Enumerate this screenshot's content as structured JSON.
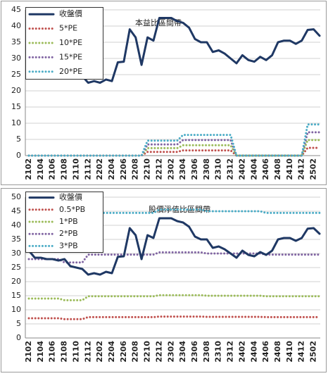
{
  "chart_data": [
    {
      "type": "line",
      "annotation": "本益比區間帶",
      "categories": [
        "2102",
        null,
        "2104",
        null,
        "2106",
        null,
        "2108",
        null,
        "2110",
        null,
        "2112",
        null,
        "2202",
        null,
        "2204",
        null,
        "2206",
        null,
        "2208",
        null,
        "2210",
        null,
        "2212",
        null,
        "2302",
        null,
        "2304",
        null,
        "2306",
        null,
        "2308",
        null,
        "2310",
        null,
        "2312",
        null,
        "2402",
        null,
        "2404",
        null,
        "2406",
        null,
        "2408",
        null,
        "2410",
        null,
        "2412",
        null,
        "2502",
        null
      ],
      "ylim": [
        0,
        45
      ],
      "yticks": [
        0,
        5,
        10,
        15,
        20,
        25,
        30,
        35,
        40,
        45
      ],
      "grid": true,
      "legend": "upper left",
      "series": [
        {
          "name": "收盤價",
          "color": "#1f3864",
          "values": [
            31,
            28.5,
            28.5,
            28,
            28,
            27.5,
            28,
            25.5,
            25,
            24.5,
            22.5,
            23,
            22.5,
            23.5,
            23,
            28.8,
            29,
            39,
            36.5,
            28,
            36.5,
            35.5,
            42.5,
            42.5,
            42.5,
            41.5,
            41,
            39.5,
            36,
            35,
            35,
            32,
            32.5,
            31.5,
            30,
            28.5,
            31,
            29.5,
            29,
            30.5,
            29.5,
            31,
            35,
            35.5,
            35.5,
            34.5,
            35.5,
            38.8,
            39,
            37
          ]
        },
        {
          "name": "5*PE",
          "color": "#c0504d",
          "values": [
            0,
            0,
            0,
            0,
            0,
            0,
            0,
            0,
            0,
            0,
            0,
            0,
            0,
            0,
            0,
            0,
            0,
            0,
            0,
            0,
            1.15,
            1.15,
            1.15,
            1.15,
            1.15,
            1.15,
            1.6,
            1.6,
            1.6,
            1.6,
            1.6,
            1.6,
            1.6,
            1.6,
            1.6,
            0,
            0,
            0,
            0,
            0,
            0,
            0,
            0,
            0,
            0,
            0,
            0,
            2.4,
            2.4,
            2.4
          ]
        },
        {
          "name": "10*PE",
          "color": "#9bbb59",
          "values": [
            0,
            0,
            0,
            0,
            0,
            0,
            0,
            0,
            0,
            0,
            0,
            0,
            0,
            0,
            0,
            0,
            0,
            0,
            0,
            0,
            2.3,
            2.3,
            2.3,
            2.3,
            2.3,
            2.3,
            3.2,
            3.2,
            3.2,
            3.2,
            3.2,
            3.2,
            3.2,
            3.2,
            3.2,
            0,
            0,
            0,
            0,
            0,
            0,
            0,
            0,
            0,
            0,
            0,
            0,
            4.8,
            4.8,
            4.8
          ]
        },
        {
          "name": "15*PE",
          "color": "#8064a2",
          "values": [
            0,
            0,
            0,
            0,
            0,
            0,
            0,
            0,
            0,
            0,
            0,
            0,
            0,
            0,
            0,
            0,
            0,
            0,
            0,
            0,
            3.45,
            3.45,
            3.45,
            3.45,
            3.45,
            3.45,
            4.8,
            4.8,
            4.8,
            4.8,
            4.8,
            4.8,
            4.8,
            4.8,
            4.8,
            0,
            0,
            0,
            0,
            0,
            0,
            0,
            0,
            0,
            0,
            0,
            0,
            7.2,
            7.2,
            7.2
          ]
        },
        {
          "name": "20*PE",
          "color": "#4bacc6",
          "values": [
            0,
            0,
            0,
            0,
            0,
            0,
            0,
            0,
            0,
            0,
            0,
            0,
            0,
            0,
            0,
            0,
            0,
            0,
            0,
            0,
            4.6,
            4.6,
            4.6,
            4.6,
            4.6,
            4.6,
            6.4,
            6.4,
            6.4,
            6.4,
            6.4,
            6.4,
            6.4,
            6.4,
            6.4,
            0,
            0,
            0,
            0,
            0,
            0,
            0,
            0,
            0,
            0,
            0,
            0,
            9.6,
            9.6,
            9.6
          ]
        }
      ]
    },
    {
      "type": "line",
      "annotation": "股價淨值比區間帶",
      "categories": [
        "2102",
        null,
        "2104",
        null,
        "2106",
        null,
        "2108",
        null,
        "2110",
        null,
        "2112",
        null,
        "2202",
        null,
        "2204",
        null,
        "2206",
        null,
        "2208",
        null,
        "2210",
        null,
        "2212",
        null,
        "2302",
        null,
        "2304",
        null,
        "2306",
        null,
        "2308",
        null,
        "2310",
        null,
        "2312",
        null,
        "2402",
        null,
        "2404",
        null,
        "2406",
        null,
        "2408",
        null,
        "2410",
        null,
        "2412",
        null,
        "2502",
        null
      ],
      "ylim": [
        0,
        50
      ],
      "yticks": [
        0,
        5,
        10,
        15,
        20,
        25,
        30,
        35,
        40,
        45,
        50
      ],
      "grid": true,
      "legend": "upper left",
      "series": [
        {
          "name": "收盤價",
          "color": "#1f3864",
          "values": [
            31,
            28.5,
            28.5,
            28,
            28,
            27.5,
            28,
            25.5,
            25,
            24.5,
            22.5,
            23,
            22.5,
            23.5,
            23,
            28.8,
            29,
            39,
            36.5,
            28,
            36.5,
            35.5,
            42.5,
            42.5,
            42.5,
            41.5,
            41,
            39.5,
            36,
            35,
            35,
            32,
            32.5,
            31.5,
            30,
            28.5,
            31,
            29.5,
            29,
            30.5,
            29.5,
            31,
            35,
            35.5,
            35.5,
            34.5,
            35.5,
            38.8,
            39,
            37
          ]
        },
        {
          "name": "0.5*PB",
          "color": "#c0504d",
          "values": [
            7,
            7,
            7,
            7,
            7,
            7,
            6.7,
            6.7,
            6.7,
            6.7,
            7.4,
            7.4,
            7.4,
            7.4,
            7.4,
            7.4,
            7.4,
            7.4,
            7.4,
            7.4,
            7.4,
            7.4,
            7.6,
            7.6,
            7.6,
            7.6,
            7.6,
            7.6,
            7.6,
            7.6,
            7.5,
            7.5,
            7.5,
            7.5,
            7.5,
            7.5,
            7.5,
            7.5,
            7.5,
            7.5,
            7.4,
            7.4,
            7.4,
            7.4,
            7.4,
            7.4,
            7.4,
            7.4,
            7.4,
            7.4
          ]
        },
        {
          "name": "1*PB",
          "color": "#9bbb59",
          "values": [
            14,
            14,
            14,
            14,
            14,
            14,
            13.4,
            13.4,
            13.4,
            13.4,
            14.8,
            14.8,
            14.8,
            14.8,
            14.8,
            14.8,
            14.8,
            14.8,
            14.8,
            14.8,
            14.8,
            14.8,
            15.2,
            15.2,
            15.2,
            15.2,
            15.2,
            15.2,
            15.2,
            15.2,
            15,
            15,
            15,
            15,
            15,
            15,
            15,
            15,
            15,
            15,
            14.8,
            14.8,
            14.8,
            14.8,
            14.8,
            14.8,
            14.8,
            14.8,
            14.8,
            14.8
          ]
        },
        {
          "name": "2*PB",
          "color": "#8064a2",
          "values": [
            28,
            28,
            28,
            28,
            28,
            28,
            26.8,
            26.8,
            26.8,
            26.8,
            29.6,
            29.6,
            29.6,
            29.6,
            29.6,
            29.6,
            29.6,
            29.6,
            29.6,
            29.6,
            29.6,
            29.6,
            30.4,
            30.4,
            30.4,
            30.4,
            30.4,
            30.4,
            30.4,
            30.4,
            30,
            30,
            30,
            30,
            30,
            30,
            30,
            30,
            30,
            30,
            29.6,
            29.6,
            29.6,
            29.6,
            29.6,
            29.6,
            29.6,
            29.6,
            29.6,
            29.6
          ]
        },
        {
          "name": "3*PB",
          "color": "#4bacc6",
          "values": [
            42,
            42,
            42,
            42,
            42,
            42,
            40.2,
            40.2,
            40.2,
            40.2,
            44.4,
            44.4,
            44.4,
            44.4,
            44.4,
            44.4,
            44.4,
            44.4,
            44.4,
            44.4,
            44.4,
            44.4,
            45.6,
            45.6,
            45.6,
            45.6,
            45.6,
            45.6,
            45.6,
            45.6,
            45,
            45,
            45,
            45,
            45,
            45,
            45,
            45,
            45,
            45,
            44.4,
            44.4,
            44.4,
            44.4,
            44.4,
            44.4,
            44.4,
            44.4,
            44.4,
            44.4
          ]
        }
      ]
    }
  ]
}
